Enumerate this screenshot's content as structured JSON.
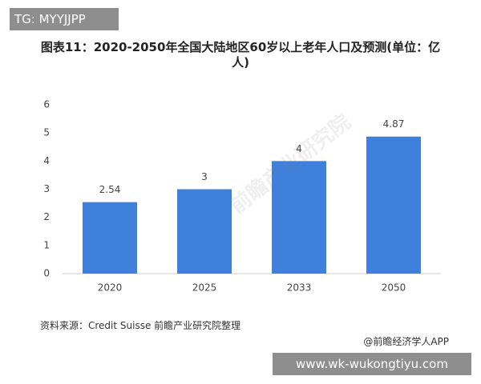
{
  "tag": "TG: MYYJJPP",
  "watermark_logo": "前瞻产业研究院",
  "source": "资料来源：Credit Suisse 前瞻产业研究院整理",
  "credit": "@前瞻经济学人APP",
  "site_watermark": "www.wk-wukongtiyu.com",
  "chart_data": {
    "type": "bar",
    "title": "图表11：2020-2050年全国大陆地区60岁以上老年人口及预测(单位：亿人)",
    "categories": [
      "2020",
      "2025",
      "2033",
      "2050"
    ],
    "values": [
      2.54,
      3,
      4,
      4.87
    ],
    "color": "#3f80dc",
    "ylim": [
      0,
      6
    ],
    "yticks": [
      0,
      1,
      2,
      3,
      4,
      5,
      6
    ],
    "grid": false
  }
}
